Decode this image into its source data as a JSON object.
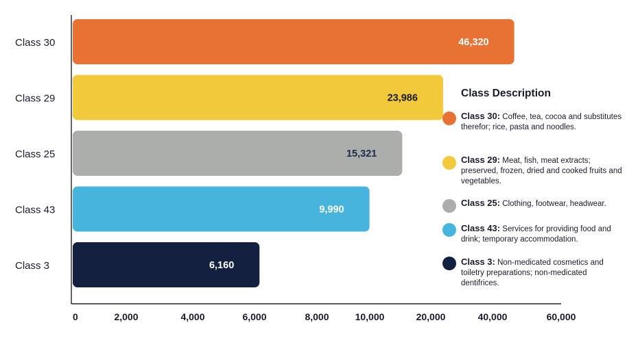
{
  "chart_data": {
    "type": "bar",
    "orientation": "horizontal",
    "categories": [
      "Class 30",
      "Class 29",
      "Class 25",
      "Class 43",
      "Class 3"
    ],
    "values": [
      46320,
      23986,
      15321,
      9990,
      6160
    ],
    "value_labels": [
      "46,320",
      "23,986",
      "15,321",
      "9,990",
      "6,160"
    ],
    "bar_colors": [
      "#e87234",
      "#f2c93a",
      "#acaeab",
      "#46b4dc",
      "#13203f"
    ],
    "value_label_colors": [
      "#ffffff",
      "#1a1a2e",
      "#1f2a4a",
      "#ffffff",
      "#ffffff"
    ],
    "xticks": [
      "0",
      "2,000",
      "4,000",
      "6,000",
      "8,000",
      "10,000",
      "20,000",
      "40,000",
      "60,000"
    ],
    "xtick_values": [
      0,
      2000,
      4000,
      6000,
      8000,
      10000,
      20000,
      40000,
      60000
    ],
    "x_scale": "piecewise-linear (non-uniform tick spacing)",
    "xlim": [
      0,
      60000
    ],
    "grid": false,
    "legend_placement": "right",
    "legend": {
      "title": "Class Description",
      "items": [
        {
          "class": "Class 30:",
          "description": "Coffee, tea, cocoa and substitutes therefor; rice, pasta and noodles.",
          "color": "#e87234"
        },
        {
          "class": "Class 29:",
          "description": "Meat, fish, meat extracts; preserved, frozen, dried and cooked fruits and vegetables.",
          "color": "#f2c93a"
        },
        {
          "class": "Class 25:",
          "description": "Clothing, footwear, headwear.",
          "color": "#acaeab"
        },
        {
          "class": "Class 43:",
          "description": "Services for providing food and drink; temporary accommodation.",
          "color": "#46b4dc"
        },
        {
          "class": "Class 3:",
          "description": "Non-medicated cosmetics and toiletry preparations; non-medicated dentifrices.",
          "color": "#13203f"
        }
      ]
    }
  }
}
